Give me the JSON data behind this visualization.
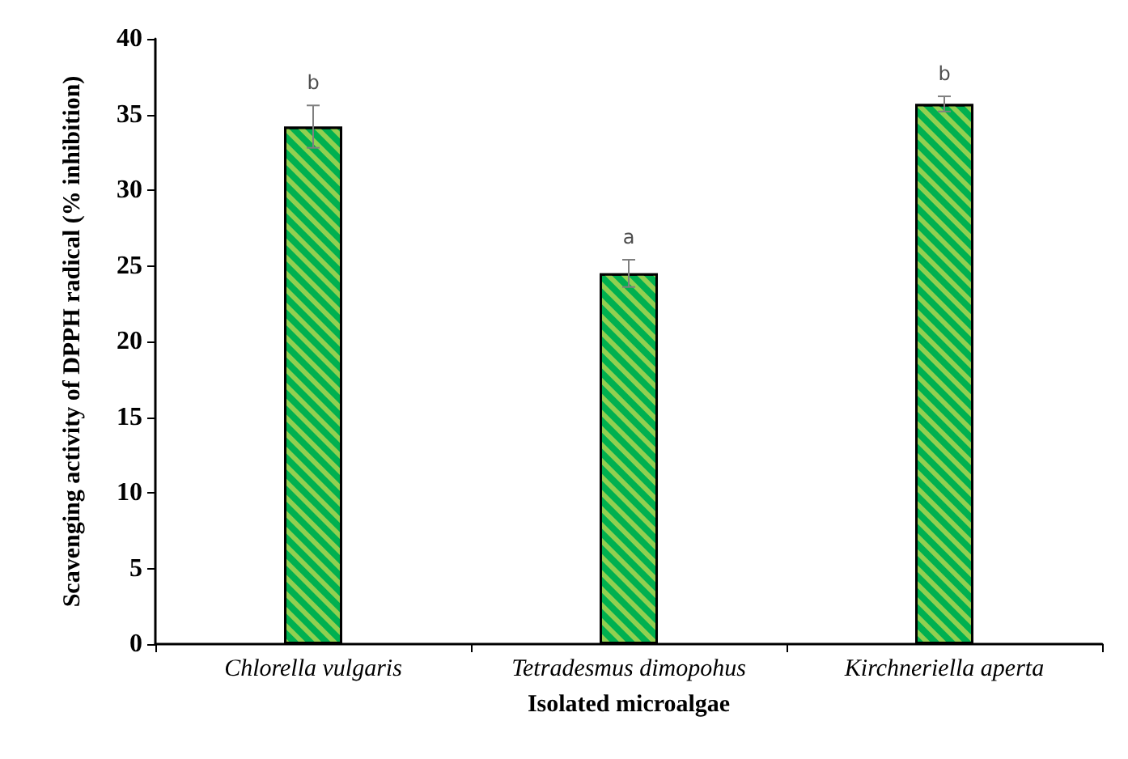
{
  "chart_data": {
    "type": "bar",
    "xlabel": "Isolated microalgae",
    "ylabel": "Scavenging activity of DPPH radical (% inhibition)",
    "categories": [
      "Chlorella vulgaris",
      "Tetradesmus dimopohus",
      "Kirchneriella aperta"
    ],
    "values": [
      34.2,
      24.5,
      35.7
    ],
    "color": "#00b050",
    "errors": [
      1.4,
      0.9,
      0.5
    ],
    "annotations": [
      {
        "text": "b",
        "x": "Chlorella vulgaris",
        "y": 35.6
      },
      {
        "text": "a",
        "x": "Tetradesmus dimopohus",
        "y": 25.4
      },
      {
        "text": "b",
        "x": "Kirchneriella aperta",
        "y": 36.2
      }
    ],
    "ylim": [
      0,
      40
    ],
    "yticks": [
      0,
      5,
      10,
      15,
      20,
      25,
      30,
      35,
      40
    ],
    "grid": false
  }
}
